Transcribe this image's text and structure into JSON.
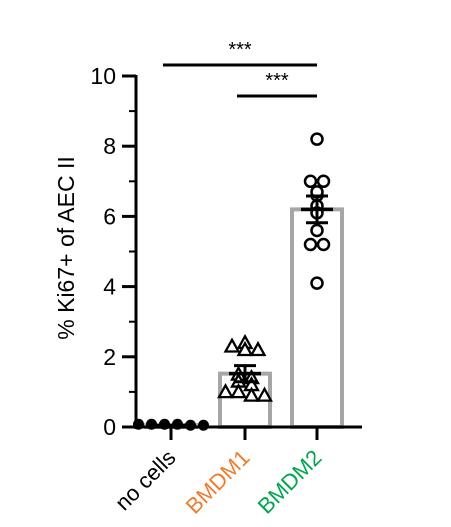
{
  "chart_data": {
    "type": "bar",
    "ylabel": "% Ki67+ of AEC II",
    "ylim": [
      0,
      10
    ],
    "yticks": [
      "0",
      "2",
      "4",
      "6",
      "8",
      "10"
    ],
    "categories": [
      {
        "label": "no cells",
        "color": "#000000",
        "mean": 0.05,
        "sem": 0.0,
        "marker": "filled-circle",
        "points": [
          0.05,
          0.05,
          0.05,
          0.05,
          0.02,
          0.02
        ]
      },
      {
        "label": "BMDM1",
        "color": "#ED7D31",
        "mean": 1.52,
        "sem": 0.23,
        "marker": "open-triangle",
        "points": [
          2.4,
          2.3,
          2.2,
          2.2,
          1.5,
          1.4,
          1.3,
          1.2,
          1.0,
          1.0,
          0.9,
          0.9
        ]
      },
      {
        "label": "BMDM2",
        "color": "#00A651",
        "mean": 6.2,
        "sem": 0.38,
        "marker": "open-circle",
        "points": [
          8.2,
          7.0,
          7.0,
          6.6,
          6.7,
          6.3,
          6.1,
          5.6,
          5.2,
          5.2,
          4.1
        ]
      }
    ],
    "significance": [
      {
        "label": "***",
        "from": 0,
        "to": 2
      },
      {
        "label": "***",
        "from": 1,
        "to": 2
      }
    ],
    "bar_color": "#A6A6A6"
  }
}
